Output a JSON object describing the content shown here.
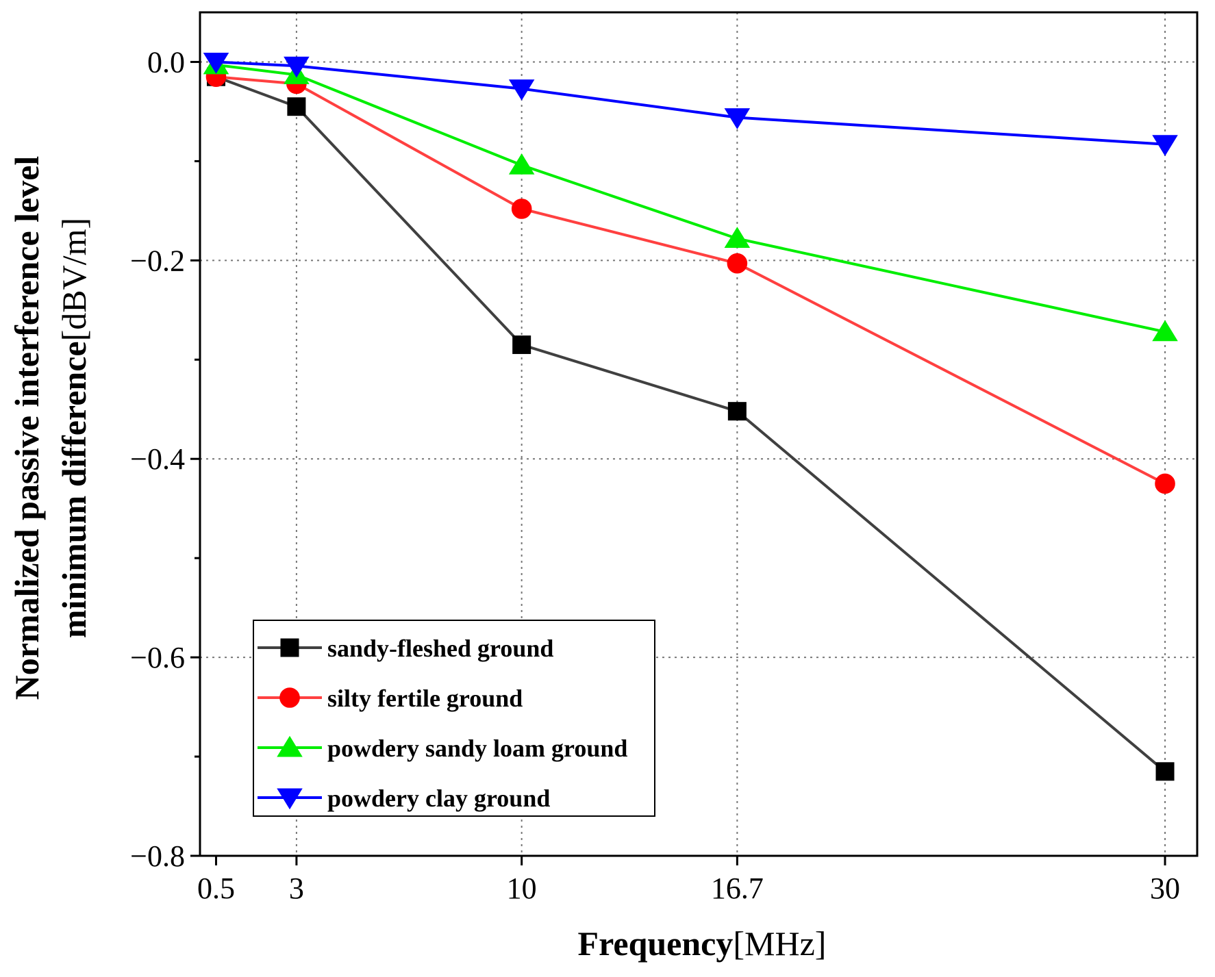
{
  "chart_data": {
    "type": "line",
    "x": [
      0.5,
      3,
      10,
      16.7,
      30
    ],
    "x_tick_labels": [
      "0.5",
      "3",
      "10",
      "16.7",
      "30"
    ],
    "y_tick_labels": [
      "0.0",
      "−0.2",
      "−0.4",
      "−0.6",
      "−0.8"
    ],
    "y_ticks": [
      0.0,
      -0.2,
      -0.4,
      -0.6,
      -0.8
    ],
    "ylim": [
      -0.8,
      0.05
    ],
    "xlim": [
      0,
      31
    ],
    "grid": true,
    "legend_position": "bottom-left",
    "xlabel_bold": "Frequency",
    "xlabel_unit": "[MHz]",
    "ylabel_line1": "Normalized passive interference level",
    "ylabel_line2_bold": "minimum difference",
    "ylabel_line2_unit": "[dBV/m]",
    "series": [
      {
        "name": "sandy-fleshed ground",
        "color": "#404040",
        "marker_color": "#000000",
        "marker": "square",
        "values": [
          -0.015,
          -0.045,
          -0.285,
          -0.352,
          -0.715
        ]
      },
      {
        "name": "silty fertile ground",
        "color": "#ff4040",
        "marker_color": "#ff0000",
        "marker": "circle",
        "values": [
          -0.015,
          -0.022,
          -0.148,
          -0.203,
          -0.425
        ]
      },
      {
        "name": "powdery sandy loam ground",
        "color": "#00ee00",
        "marker_color": "#00ee00",
        "marker": "triangle-up",
        "values": [
          -0.003,
          -0.013,
          -0.104,
          -0.178,
          -0.272
        ]
      },
      {
        "name": "powdery clay ground",
        "color": "#0000ff",
        "marker_color": "#0000ff",
        "marker": "triangle-down",
        "values": [
          0.0,
          -0.004,
          -0.027,
          -0.056,
          -0.083
        ]
      }
    ]
  }
}
